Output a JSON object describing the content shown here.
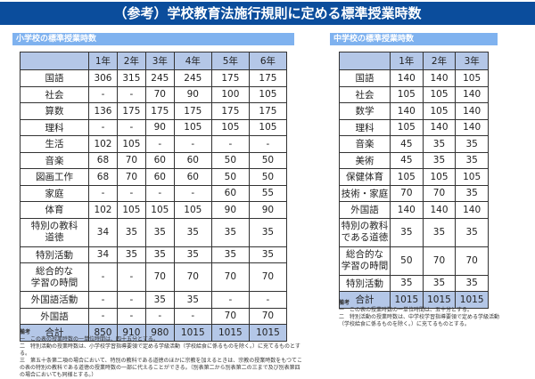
{
  "title": "（参考）学校教育法施行規則に定める標準授業時数",
  "elementary": {
    "heading": "小学校の標準授業時数",
    "columns": [
      "",
      "1年",
      "2年",
      "3年",
      "4年",
      "5年",
      "6年"
    ],
    "rows": [
      {
        "subject": "国語",
        "values": [
          "306",
          "315",
          "245",
          "245",
          "175",
          "175"
        ]
      },
      {
        "subject": "社会",
        "values": [
          "-",
          "-",
          "70",
          "90",
          "100",
          "105"
        ]
      },
      {
        "subject": "算数",
        "values": [
          "136",
          "175",
          "175",
          "175",
          "175",
          "175"
        ]
      },
      {
        "subject": "理科",
        "values": [
          "-",
          "-",
          "90",
          "105",
          "105",
          "105"
        ]
      },
      {
        "subject": "生活",
        "values": [
          "102",
          "105",
          "-",
          "-",
          "-",
          "-"
        ]
      },
      {
        "subject": "音楽",
        "values": [
          "68",
          "70",
          "60",
          "60",
          "50",
          "50"
        ]
      },
      {
        "subject": "図画工作",
        "values": [
          "68",
          "70",
          "60",
          "60",
          "50",
          "50"
        ]
      },
      {
        "subject": "家庭",
        "values": [
          "-",
          "-",
          "-",
          "-",
          "60",
          "55"
        ]
      },
      {
        "subject": "体育",
        "values": [
          "102",
          "105",
          "105",
          "105",
          "90",
          "90"
        ]
      },
      {
        "subject": "特別の教科\n道徳",
        "values": [
          "34",
          "35",
          "35",
          "35",
          "35",
          "35"
        ]
      },
      {
        "subject": "特別活動",
        "values": [
          "34",
          "35",
          "35",
          "35",
          "35",
          "35"
        ]
      },
      {
        "subject": "総合的な\n学習の時間",
        "values": [
          "-",
          "-",
          "70",
          "70",
          "70",
          "70"
        ]
      },
      {
        "subject": "外国語活動",
        "values": [
          "-",
          "-",
          "35",
          "35",
          "-",
          "-"
        ]
      },
      {
        "subject": "外国語",
        "values": [
          "-",
          "-",
          "-",
          "-",
          "70",
          "70"
        ]
      },
      {
        "subject": "合計",
        "values": [
          "850",
          "910",
          "980",
          "1015",
          "1015",
          "1015"
        ],
        "total": true
      }
    ],
    "notes_heading": "備考",
    "notes": [
      "一　この表の授業時数の一単位時間は、四十五分とする。",
      "二　特別活動の授業時数は、小学校学習指導要領で定める学級活動（学校給食に係るものを除く。）に充てるものとする。",
      "三　第五十条第二項の場合において、特別の教科である道徳のほかに宗教を加えるときは、宗教の授業時数をもつてこの表の特別の教科である道徳の授業時数の一部に代えることができる。（別表第二から別表第二の三まで及び別表第四の場合においても同様とする。）"
    ]
  },
  "junior": {
    "heading": "中学校の標準授業時数",
    "columns": [
      "",
      "1年",
      "2年",
      "3年"
    ],
    "rows": [
      {
        "subject": "国語",
        "values": [
          "140",
          "140",
          "105"
        ]
      },
      {
        "subject": "社会",
        "values": [
          "105",
          "105",
          "140"
        ]
      },
      {
        "subject": "数学",
        "values": [
          "140",
          "105",
          "140"
        ]
      },
      {
        "subject": "理科",
        "values": [
          "105",
          "140",
          "140"
        ]
      },
      {
        "subject": "音楽",
        "values": [
          "45",
          "35",
          "35"
        ]
      },
      {
        "subject": "美術",
        "values": [
          "45",
          "35",
          "35"
        ]
      },
      {
        "subject": "保健体育",
        "values": [
          "105",
          "105",
          "105"
        ]
      },
      {
        "subject": "技術・家庭",
        "values": [
          "70",
          "70",
          "35"
        ]
      },
      {
        "subject": "外国語",
        "values": [
          "140",
          "140",
          "140"
        ]
      },
      {
        "subject": "特別の教科\nである道徳",
        "values": [
          "35",
          "35",
          "35"
        ]
      },
      {
        "subject": "総合的な\n学習の時間",
        "values": [
          "50",
          "70",
          "70"
        ]
      },
      {
        "subject": "特別活動",
        "values": [
          "35",
          "35",
          "35"
        ]
      },
      {
        "subject": "合計",
        "values": [
          "1015",
          "1015",
          "1015"
        ],
        "total": true
      }
    ],
    "notes_heading": "備考",
    "notes": [
      "一　この表の授業時数の一単位時間は、五十分とする。",
      "二　特別活動の授業時数は、中学校学習指導要領で定める学級活動（学校給食に係るものを除く。）に充てるものとする。"
    ]
  },
  "colors": {
    "title_bar": "#0b4d9c",
    "section_bar": "#7fb2ef",
    "header_fill": "#b4c7e7"
  }
}
